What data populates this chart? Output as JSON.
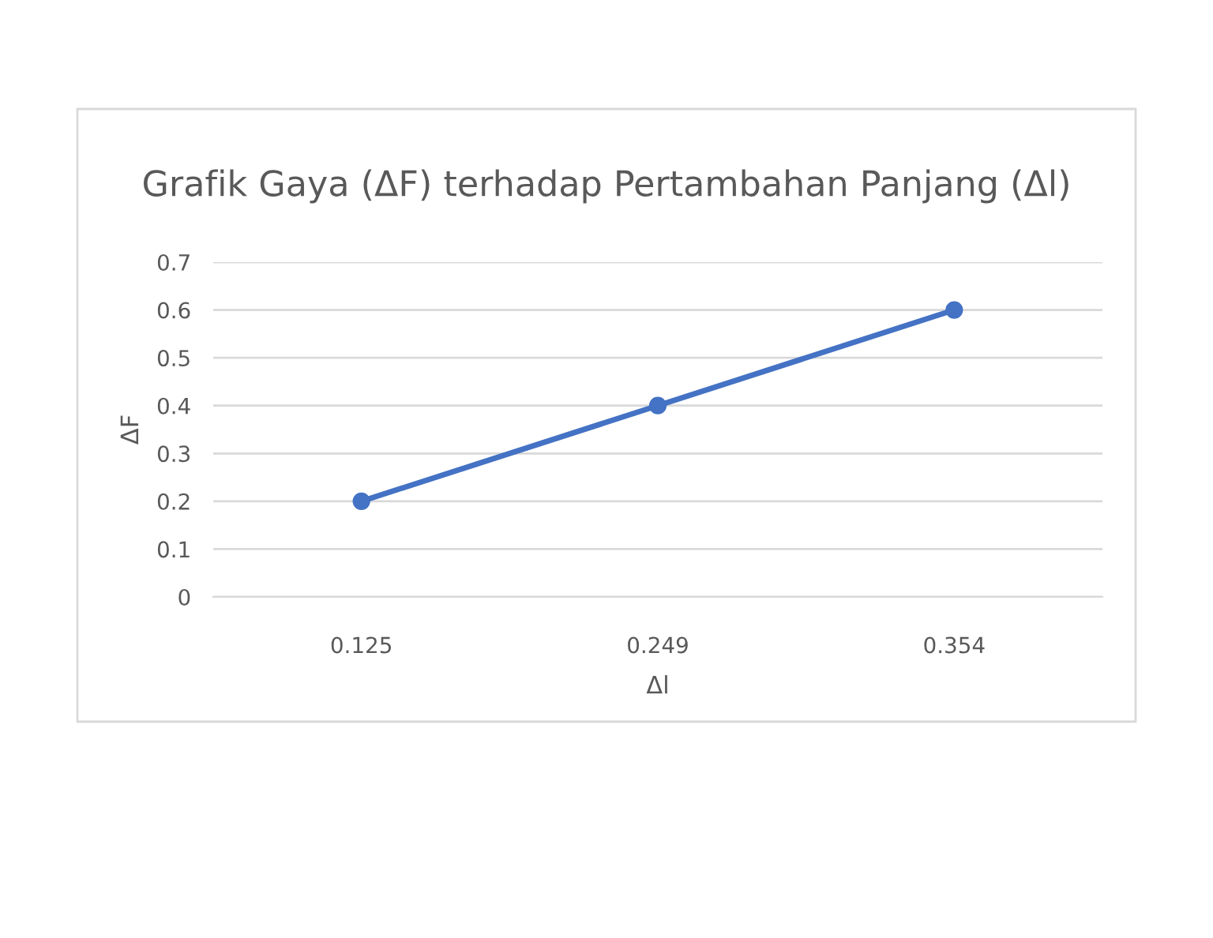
{
  "chart_data": {
    "type": "line",
    "title": "Grafik Gaya (ΔF) terhadap Pertambahan Panjang (Δl)",
    "xlabel": "Δl",
    "ylabel": "ΔF",
    "categories": [
      "0.125",
      "0.249",
      "0.354"
    ],
    "series": [
      {
        "color": "#4472c4",
        "values": [
          0.2,
          0.4,
          0.6
        ]
      }
    ],
    "ylim": [
      0,
      0.7
    ],
    "yticks": [
      0,
      0.1,
      0.2,
      0.3,
      0.4,
      0.5,
      0.6,
      0.7
    ],
    "grid": "y",
    "marker": "circle",
    "line_style": "solid"
  }
}
